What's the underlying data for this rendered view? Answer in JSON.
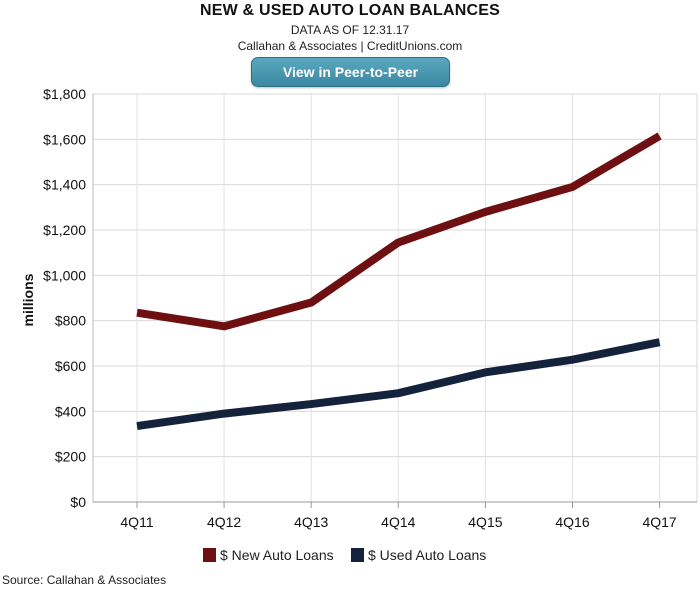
{
  "header": {
    "title": "NEW & USED AUTO LOAN BALANCES",
    "subtitle1": "DATA AS OF 12.31.17",
    "subtitle2": "Callahan & Associates | CreditUnions.com",
    "button_label": "View in Peer-to-Peer"
  },
  "footer": {
    "source": "Source: Callahan & Associates"
  },
  "chart_data": {
    "type": "line",
    "title": "NEW & USED AUTO LOAN BALANCES",
    "xlabel": "",
    "ylabel": "millions",
    "categories": [
      "4Q11",
      "4Q12",
      "4Q13",
      "4Q14",
      "4Q15",
      "4Q16",
      "4Q17"
    ],
    "ylim": [
      0,
      1800
    ],
    "yticks": [
      0,
      200,
      400,
      600,
      800,
      1000,
      1200,
      1400,
      1600,
      1800
    ],
    "ytick_labels": [
      "$0",
      "$200",
      "$400",
      "$600",
      "$800",
      "$1,000",
      "$1,200",
      "$1,400",
      "$1,600",
      "$1,800"
    ],
    "grid": true,
    "legend_position": "bottom-center",
    "series": [
      {
        "name": "$ New Auto Loans",
        "color": "#6e0f12",
        "values": [
          835,
          775,
          880,
          1145,
          1280,
          1390,
          1615
        ]
      },
      {
        "name": "$ Used Auto Loans",
        "color": "#14233b",
        "values": [
          335,
          390,
          432,
          480,
          572,
          628,
          705
        ]
      }
    ]
  }
}
